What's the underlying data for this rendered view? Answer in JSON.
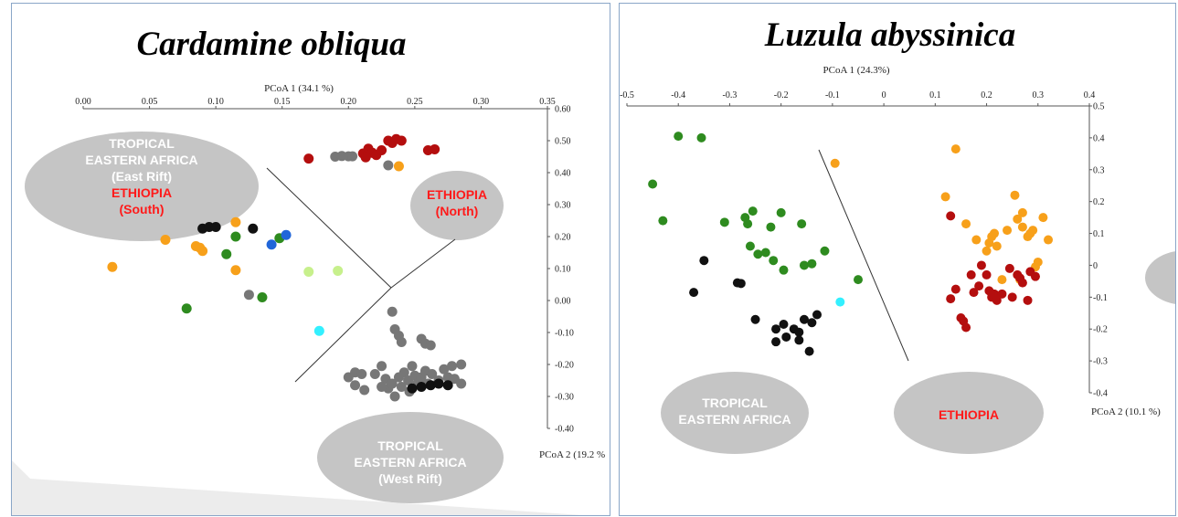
{
  "colors": {
    "green": "#2e8b1f",
    "black": "#111111",
    "orange": "#f7a01a",
    "darkred": "#b40e0e",
    "gray": "#777777",
    "blue": "#2166d9",
    "lightgreen": "#c7f08c",
    "cyan": "#33f0ff",
    "ellipse": "#c5c5c5",
    "ellipse_text_white": "#ffffff",
    "ellipse_text_red": "#ff1a1a"
  },
  "chart_data": [
    {
      "type": "scatter",
      "title": "Cardamine obliqua",
      "xlabel": "PCoA 1 (34.1 %)",
      "ylabel": "PCoA 2 (19.2 %",
      "xlim": [
        0,
        0.35
      ],
      "ylim": [
        -0.4,
        0.6
      ],
      "x_ticks": [
        "0.00",
        "0.05",
        "0.10",
        "0.15",
        "0.20",
        "0.25",
        "0.30",
        "0.35"
      ],
      "y_ticks": [
        "0.60",
        "0.50",
        "0.40",
        "0.30",
        "0.20",
        "0.10",
        "0.00",
        "-0.10",
        "-0.20",
        "-0.30",
        "-0.40"
      ],
      "group_labels": [
        {
          "lines": [
            "TROPICAL",
            "EASTERN AFRICA",
            "(East Rift)"
          ],
          "red_lines": [
            "ETHIOPIA",
            "(South)"
          ]
        },
        {
          "lines": [],
          "red_lines": [
            "ETHIOPIA",
            "(North)"
          ]
        },
        {
          "lines": [
            "TROPICAL",
            "EASTERN AFRICA",
            "(West Rift)"
          ],
          "red_lines": []
        }
      ],
      "series": [
        {
          "color": "darkred",
          "points": [
            [
              0.17,
              0.444
            ],
            [
              0.211,
              0.46
            ],
            [
              0.215,
              0.475
            ],
            [
              0.218,
              0.462
            ],
            [
              0.221,
              0.455
            ],
            [
              0.23,
              0.5
            ],
            [
              0.233,
              0.493
            ],
            [
              0.236,
              0.505
            ],
            [
              0.24,
              0.5
            ],
            [
              0.26,
              0.47
            ],
            [
              0.265,
              0.473
            ],
            [
              0.225,
              0.47
            ],
            [
              0.213,
              0.448
            ]
          ]
        },
        {
          "color": "gray",
          "points": [
            [
              0.19,
              0.45
            ],
            [
              0.195,
              0.452
            ],
            [
              0.2,
              0.451
            ],
            [
              0.203,
              0.451
            ],
            [
              0.23,
              0.423
            ],
            [
              0.125,
              0.018
            ],
            [
              0.233,
              -0.035
            ],
            [
              0.235,
              -0.09
            ],
            [
              0.238,
              -0.11
            ],
            [
              0.24,
              -0.13
            ],
            [
              0.255,
              -0.12
            ],
            [
              0.258,
              -0.135
            ],
            [
              0.262,
              -0.14
            ],
            [
              0.2,
              -0.24
            ],
            [
              0.205,
              -0.225
            ],
            [
              0.21,
              -0.23
            ],
            [
              0.205,
              -0.265
            ],
            [
              0.212,
              -0.28
            ],
            [
              0.22,
              -0.23
            ],
            [
              0.225,
              -0.205
            ],
            [
              0.228,
              -0.245
            ],
            [
              0.23,
              -0.275
            ],
            [
              0.233,
              -0.26
            ],
            [
              0.235,
              -0.3
            ],
            [
              0.238,
              -0.24
            ],
            [
              0.24,
              -0.27
            ],
            [
              0.242,
              -0.225
            ],
            [
              0.245,
              -0.25
            ],
            [
              0.248,
              -0.205
            ],
            [
              0.25,
              -0.235
            ],
            [
              0.252,
              -0.26
            ],
            [
              0.255,
              -0.24
            ],
            [
              0.258,
              -0.22
            ],
            [
              0.26,
              -0.26
            ],
            [
              0.263,
              -0.23
            ],
            [
              0.268,
              -0.25
            ],
            [
              0.272,
              -0.215
            ],
            [
              0.275,
              -0.24
            ],
            [
              0.278,
              -0.205
            ],
            [
              0.28,
              -0.245
            ],
            [
              0.285,
              -0.2
            ],
            [
              0.285,
              -0.26
            ],
            [
              0.246,
              -0.285
            ],
            [
              0.225,
              -0.27
            ]
          ]
        },
        {
          "color": "black",
          "points": [
            [
              0.09,
              0.225
            ],
            [
              0.095,
              0.23
            ],
            [
              0.1,
              0.23
            ],
            [
              0.128,
              0.225
            ],
            [
              0.248,
              -0.275
            ],
            [
              0.255,
              -0.27
            ],
            [
              0.262,
              -0.265
            ],
            [
              0.268,
              -0.26
            ],
            [
              0.275,
              -0.265
            ]
          ]
        },
        {
          "color": "orange",
          "points": [
            [
              0.022,
              0.105
            ],
            [
              0.062,
              0.19
            ],
            [
              0.085,
              0.17
            ],
            [
              0.088,
              0.165
            ],
            [
              0.09,
              0.155
            ],
            [
              0.115,
              0.245
            ],
            [
              0.115,
              0.095
            ],
            [
              0.238,
              0.42
            ]
          ]
        },
        {
          "color": "green",
          "points": [
            [
              0.078,
              -0.025
            ],
            [
              0.108,
              0.145
            ],
            [
              0.115,
              0.2
            ],
            [
              0.135,
              0.01
            ],
            [
              0.148,
              0.195
            ]
          ]
        },
        {
          "color": "blue",
          "points": [
            [
              0.142,
              0.175
            ],
            [
              0.153,
              0.205
            ]
          ]
        },
        {
          "color": "lightgreen",
          "points": [
            [
              0.17,
              0.09
            ],
            [
              0.192,
              0.093
            ]
          ]
        },
        {
          "color": "cyan",
          "points": [
            [
              0.178,
              -0.095
            ]
          ]
        }
      ]
    },
    {
      "type": "scatter",
      "title": "Luzula abyssinica",
      "xlabel": "PCoA 1 (24.3%)",
      "ylabel": "PCoA 2 (10.1 %)",
      "xlim": [
        -0.5,
        0.4
      ],
      "ylim": [
        -0.4,
        0.5
      ],
      "x_ticks": [
        "-0.5",
        "-0.4",
        "-0.3",
        "-0.2",
        "-0.1",
        "0",
        "0.1",
        "0.2",
        "0.3",
        "0.4"
      ],
      "y_ticks": [
        "0.5",
        "0.4",
        "0.3",
        "0.2",
        "0.1",
        "0",
        "-0.1",
        "-0.2",
        "-0.3",
        "-0.4"
      ],
      "group_labels": [
        {
          "lines": [
            "TROPICAL",
            "EASTERN AFRICA"
          ],
          "red_lines": []
        },
        {
          "lines": [],
          "red_lines": [
            "ETHIOPIA"
          ]
        }
      ],
      "series": [
        {
          "color": "green",
          "points": [
            [
              -0.4,
              0.405
            ],
            [
              -0.355,
              0.4
            ],
            [
              -0.45,
              0.255
            ],
            [
              -0.43,
              0.14
            ],
            [
              -0.31,
              0.135
            ],
            [
              -0.27,
              0.15
            ],
            [
              -0.265,
              0.13
            ],
            [
              -0.255,
              0.17
            ],
            [
              -0.22,
              0.12
            ],
            [
              -0.2,
              0.165
            ],
            [
              -0.16,
              0.13
            ],
            [
              -0.26,
              0.06
            ],
            [
              -0.245,
              0.035
            ],
            [
              -0.23,
              0.04
            ],
            [
              -0.215,
              0.015
            ],
            [
              -0.195,
              -0.015
            ],
            [
              -0.155,
              0.0
            ],
            [
              -0.14,
              0.005
            ],
            [
              -0.115,
              0.045
            ],
            [
              -0.05,
              -0.045
            ]
          ]
        },
        {
          "color": "black",
          "points": [
            [
              -0.35,
              0.015
            ],
            [
              -0.37,
              -0.085
            ],
            [
              -0.285,
              -0.055
            ],
            [
              -0.278,
              -0.057
            ],
            [
              -0.25,
              -0.17
            ],
            [
              -0.21,
              -0.2
            ],
            [
              -0.195,
              -0.185
            ],
            [
              -0.175,
              -0.2
            ],
            [
              -0.165,
              -0.21
            ],
            [
              -0.155,
              -0.17
            ],
            [
              -0.14,
              -0.18
            ],
            [
              -0.13,
              -0.155
            ],
            [
              -0.21,
              -0.24
            ],
            [
              -0.19,
              -0.225
            ],
            [
              -0.165,
              -0.235
            ],
            [
              -0.145,
              -0.27
            ]
          ]
        },
        {
          "color": "cyan",
          "points": [
            [
              -0.085,
              -0.115
            ]
          ]
        },
        {
          "color": "orange",
          "points": [
            [
              -0.095,
              0.32
            ],
            [
              0.12,
              0.215
            ],
            [
              0.14,
              0.365
            ],
            [
              0.16,
              0.13
            ],
            [
              0.18,
              0.08
            ],
            [
              0.2,
              0.045
            ],
            [
              0.205,
              0.07
            ],
            [
              0.21,
              0.09
            ],
            [
              0.215,
              0.1
            ],
            [
              0.22,
              0.06
            ],
            [
              0.24,
              0.11
            ],
            [
              0.255,
              0.22
            ],
            [
              0.26,
              0.145
            ],
            [
              0.27,
              0.165
            ],
            [
              0.27,
              0.12
            ],
            [
              0.28,
              0.09
            ],
            [
              0.285,
              0.1
            ],
            [
              0.29,
              0.11
            ],
            [
              0.295,
              -0.005
            ],
            [
              0.3,
              0.01
            ],
            [
              0.31,
              0.15
            ],
            [
              0.32,
              0.08
            ],
            [
              0.23,
              -0.045
            ],
            [
              0.265,
              -0.045
            ]
          ]
        },
        {
          "color": "darkred",
          "points": [
            [
              0.13,
              0.155
            ],
            [
              0.13,
              -0.105
            ],
            [
              0.14,
              -0.075
            ],
            [
              0.15,
              -0.165
            ],
            [
              0.155,
              -0.175
            ],
            [
              0.16,
              -0.195
            ],
            [
              0.17,
              -0.03
            ],
            [
              0.175,
              -0.085
            ],
            [
              0.185,
              -0.065
            ],
            [
              0.19,
              0.0
            ],
            [
              0.2,
              -0.03
            ],
            [
              0.205,
              -0.08
            ],
            [
              0.21,
              -0.1
            ],
            [
              0.215,
              -0.09
            ],
            [
              0.22,
              -0.11
            ],
            [
              0.23,
              -0.09
            ],
            [
              0.245,
              -0.01
            ],
            [
              0.26,
              -0.03
            ],
            [
              0.265,
              -0.04
            ],
            [
              0.27,
              -0.055
            ],
            [
              0.28,
              -0.11
            ],
            [
              0.285,
              -0.02
            ],
            [
              0.295,
              -0.035
            ],
            [
              0.25,
              -0.1
            ]
          ]
        }
      ]
    }
  ]
}
